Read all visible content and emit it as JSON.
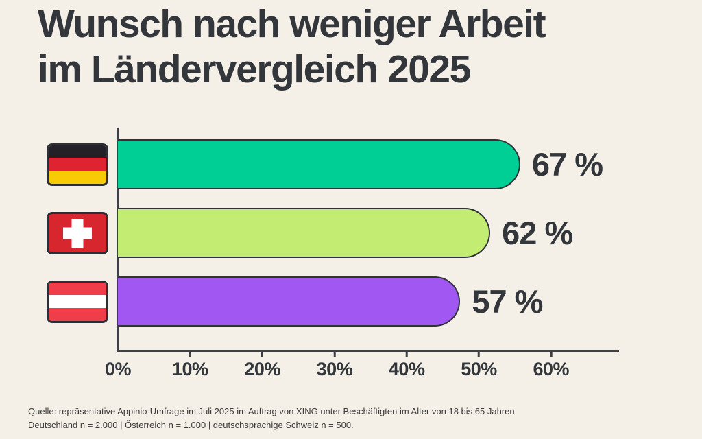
{
  "title": {
    "line1": "Wunsch nach weniger Arbeit",
    "line2": "im Ländervergleich 2025",
    "full": "Wunsch nach weniger Arbeit im Ländervergleich 2025"
  },
  "chart_data": {
    "type": "bar",
    "orientation": "horizontal",
    "title": "Wunsch nach weniger Arbeit im Ländervergleich 2025",
    "categories": [
      "Deutschland",
      "Schweiz",
      "Österreich"
    ],
    "values": [
      67,
      62,
      57
    ],
    "value_labels": [
      "67 %",
      "62 %",
      "57 %"
    ],
    "bar_colors": [
      "#00cf95",
      "#c2ed72",
      "#a158f2"
    ],
    "x_ticks": [
      "0%",
      "10%",
      "20%",
      "30%",
      "40%",
      "50%",
      "60%"
    ],
    "x_axis_range": [
      0,
      69
    ],
    "grid": false,
    "legend_position": "none",
    "category_icons": [
      "flag-germany",
      "flag-switzerland",
      "flag-austria"
    ]
  },
  "flags": {
    "germany": {
      "colors": [
        "#232028",
        "#de2430",
        "#f8cb05"
      ]
    },
    "switzerland": {
      "field": "#d8262e",
      "cross": "#ffffff"
    },
    "austria": {
      "colors": [
        "#ef3e49",
        "#ffffff",
        "#ef3e49"
      ]
    }
  },
  "footer": {
    "line1": "Quelle: repräsentative Appinio-Umfrage im Juli 2025 im Auftrag von XING unter Beschäftigten im Alter von 18 bis 65 Jahren",
    "line2": "Deutschland n = 2.000 | Österreich n = 1.000 | deutschsprachige Schweiz n = 500."
  },
  "colors": {
    "background": "#f4efe7",
    "text_dark": "#33373b",
    "axis": "#3d4145"
  }
}
